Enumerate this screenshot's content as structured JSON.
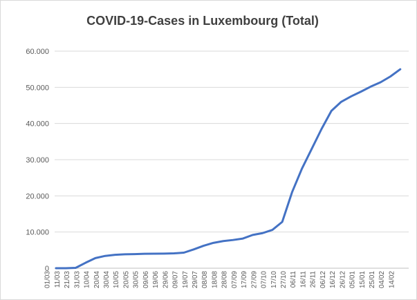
{
  "chart_data": {
    "type": "line",
    "title": "COVID-19-Cases in Luxembourg (Total)",
    "xlabel": "",
    "ylabel": "",
    "ylim": [
      0,
      60000
    ],
    "yticks": [
      0,
      10000,
      20000,
      30000,
      40000,
      50000,
      60000
    ],
    "ytick_labels": [
      "0",
      "10.000",
      "20.000",
      "30.000",
      "40.000",
      "50.000",
      "60.000"
    ],
    "grid": true,
    "legend": "none",
    "line_color": "#4472c4",
    "x_tick_labels": [
      "01/03",
      "11/03",
      "21/03",
      "31/03",
      "10/04",
      "20/04",
      "30/04",
      "10/05",
      "20/05",
      "30/05",
      "09/06",
      "19/06",
      "29/06",
      "09/07",
      "19/07",
      "29/07",
      "08/08",
      "18/08",
      "28/08",
      "07/09",
      "17/09",
      "27/09",
      "07/10",
      "17/10",
      "27/10",
      "06/11",
      "16/11",
      "26/11",
      "06/12",
      "16/12",
      "26/12",
      "05/01",
      "15/01",
      "25/01",
      "04/02",
      "14/02"
    ],
    "series": [
      {
        "values": [
          0,
          5,
          100,
          1500,
          2800,
          3400,
          3700,
          3850,
          3900,
          3980,
          4010,
          4040,
          4100,
          4300,
          5200,
          6200,
          7000,
          7500,
          7800,
          8200,
          9200,
          9700,
          10600,
          12800,
          21000,
          27500,
          33000,
          38500,
          43500,
          46000,
          47500,
          48800,
          50200,
          51400,
          53000,
          55000
        ]
      }
    ]
  }
}
